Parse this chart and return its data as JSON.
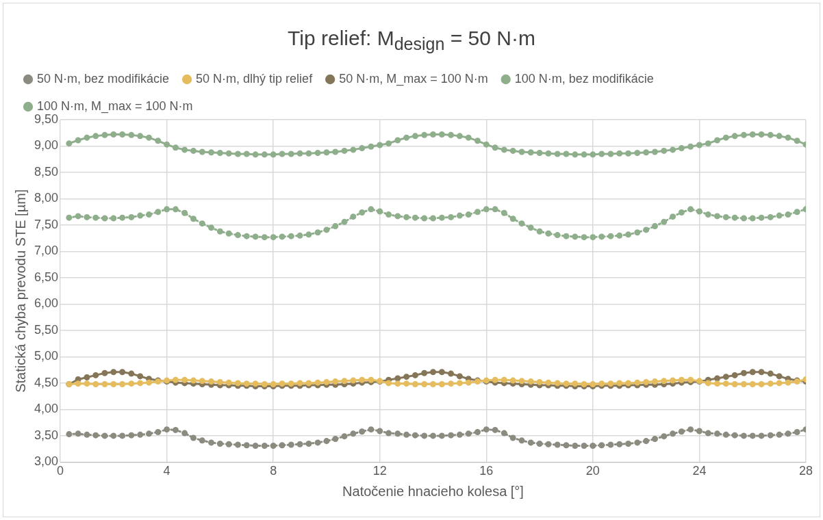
{
  "chart_data": {
    "type": "line",
    "title": "Tip relief: M$_{design}$ = 50 N·m",
    "xlabel": "Natočenie hnacieho kolesa [°]",
    "ylabel": "Statická chyba prevodu STE [µm]",
    "x": [
      0.33,
      0.67,
      1,
      1.33,
      1.67,
      2,
      2.33,
      2.67,
      3,
      3.33,
      3.67,
      4,
      4.33,
      4.67,
      5,
      5.33,
      5.67,
      6,
      6.33,
      6.67,
      7,
      7.33,
      7.67,
      8,
      8.33,
      8.67,
      9,
      9.33,
      9.67,
      10,
      10.33,
      10.67,
      11,
      11.33,
      11.67,
      12,
      12.33,
      12.67,
      13,
      13.33,
      13.67,
      14,
      14.33,
      14.67,
      15,
      15.33,
      15.67,
      16,
      16.33,
      16.67,
      17,
      17.33,
      17.67,
      18,
      18.33,
      18.67,
      19,
      19.33,
      19.67,
      20,
      20.33,
      20.67,
      21,
      21.33,
      21.67,
      22,
      22.33,
      22.67,
      23,
      23.33,
      23.67,
      24,
      24.33,
      24.67,
      25,
      25.33,
      25.67,
      26,
      26.33,
      26.67,
      27,
      27.33,
      27.67,
      28
    ],
    "xlim": [
      0,
      28
    ],
    "xticks": [
      0,
      4,
      8,
      12,
      16,
      20,
      24,
      28
    ],
    "ylim": [
      3,
      9.5
    ],
    "yticks": [
      {
        "value": 3,
        "label": "3,00"
      },
      {
        "value": 3.5,
        "label": "3,50"
      },
      {
        "value": 4,
        "label": "4,00"
      },
      {
        "value": 4.5,
        "label": "4,50"
      },
      {
        "value": 5,
        "label": "5,00"
      },
      {
        "value": 5.5,
        "label": "5,50"
      },
      {
        "value": 6,
        "label": "6,00"
      },
      {
        "value": 6.5,
        "label": "6,50"
      },
      {
        "value": 7,
        "label": "7,00"
      },
      {
        "value": 7.5,
        "label": "7,50"
      },
      {
        "value": 8,
        "label": "8,00"
      },
      {
        "value": 8.5,
        "label": "8,50"
      },
      {
        "value": 9,
        "label": "9,00"
      },
      {
        "value": 9.5,
        "label": "9,50"
      }
    ],
    "grid": true,
    "legend": "top",
    "marker": "circle",
    "series": [
      {
        "name": "50 N·m, bez modifikácie",
        "color": "#8c8b80",
        "line_style": "dotted",
        "values": [
          3.53,
          3.54,
          3.52,
          3.51,
          3.5,
          3.5,
          3.5,
          3.51,
          3.52,
          3.54,
          3.57,
          3.62,
          3.61,
          3.55,
          3.46,
          3.41,
          3.37,
          3.35,
          3.34,
          3.33,
          3.32,
          3.31,
          3.31,
          3.31,
          3.32,
          3.33,
          3.34,
          3.35,
          3.37,
          3.4,
          3.44,
          3.49,
          3.54,
          3.58,
          3.62,
          3.59,
          3.55,
          3.54,
          3.52,
          3.51,
          3.5,
          3.5,
          3.5,
          3.51,
          3.52,
          3.54,
          3.57,
          3.62,
          3.61,
          3.55,
          3.46,
          3.41,
          3.37,
          3.35,
          3.34,
          3.33,
          3.32,
          3.31,
          3.31,
          3.31,
          3.32,
          3.33,
          3.34,
          3.35,
          3.37,
          3.4,
          3.44,
          3.49,
          3.54,
          3.58,
          3.62,
          3.59,
          3.55,
          3.54,
          3.52,
          3.51,
          3.5,
          3.5,
          3.5,
          3.51,
          3.52,
          3.54,
          3.57,
          3.62
        ]
      },
      {
        "name": "50 N·m, dlhý tip relief",
        "color": "#e6bd5e",
        "line_style": "solid",
        "values": [
          4.48,
          4.49,
          4.49,
          4.48,
          4.48,
          4.48,
          4.48,
          4.49,
          4.5,
          4.51,
          4.53,
          4.55,
          4.56,
          4.56,
          4.55,
          4.54,
          4.53,
          4.52,
          4.51,
          4.5,
          4.49,
          4.49,
          4.48,
          4.48,
          4.49,
          4.49,
          4.5,
          4.5,
          4.51,
          4.52,
          4.53,
          4.54,
          4.55,
          4.56,
          4.56,
          4.54,
          4.5,
          4.49,
          4.49,
          4.48,
          4.48,
          4.48,
          4.48,
          4.49,
          4.5,
          4.51,
          4.53,
          4.55,
          4.56,
          4.56,
          4.55,
          4.54,
          4.53,
          4.52,
          4.51,
          4.5,
          4.49,
          4.49,
          4.48,
          4.48,
          4.49,
          4.49,
          4.5,
          4.5,
          4.51,
          4.52,
          4.53,
          4.54,
          4.55,
          4.56,
          4.56,
          4.54,
          4.5,
          4.49,
          4.49,
          4.48,
          4.48,
          4.48,
          4.48,
          4.49,
          4.5,
          4.51,
          4.53,
          4.57
        ]
      },
      {
        "name": "50 N·m, M_max = 100 N·m",
        "color": "#857659",
        "line_style": "solid",
        "values": [
          4.48,
          4.57,
          4.61,
          4.65,
          4.69,
          4.71,
          4.71,
          4.68,
          4.63,
          4.58,
          4.55,
          4.53,
          4.51,
          4.5,
          4.49,
          4.48,
          4.47,
          4.46,
          4.46,
          4.45,
          4.45,
          4.44,
          4.44,
          4.44,
          4.45,
          4.45,
          4.45,
          4.46,
          4.46,
          4.47,
          4.47,
          4.48,
          4.49,
          4.51,
          4.52,
          4.53,
          4.56,
          4.59,
          4.62,
          4.65,
          4.69,
          4.71,
          4.71,
          4.68,
          4.63,
          4.58,
          4.55,
          4.53,
          4.51,
          4.5,
          4.49,
          4.48,
          4.47,
          4.46,
          4.46,
          4.45,
          4.45,
          4.44,
          4.44,
          4.44,
          4.45,
          4.45,
          4.45,
          4.46,
          4.46,
          4.47,
          4.47,
          4.48,
          4.49,
          4.51,
          4.52,
          4.53,
          4.56,
          4.59,
          4.62,
          4.65,
          4.69,
          4.71,
          4.71,
          4.68,
          4.63,
          4.58,
          4.55,
          4.53
        ]
      },
      {
        "name": "100 N·m, bez modifikácie",
        "color": "#8fae8c",
        "line_style": "dotted",
        "values": [
          7.64,
          7.67,
          7.65,
          7.64,
          7.63,
          7.63,
          7.64,
          7.65,
          7.68,
          7.7,
          7.75,
          7.8,
          7.8,
          7.73,
          7.62,
          7.53,
          7.45,
          7.38,
          7.34,
          7.31,
          7.29,
          7.28,
          7.27,
          7.27,
          7.28,
          7.29,
          7.3,
          7.32,
          7.36,
          7.41,
          7.48,
          7.56,
          7.66,
          7.74,
          7.8,
          7.76,
          7.7,
          7.67,
          7.65,
          7.64,
          7.63,
          7.63,
          7.64,
          7.65,
          7.68,
          7.7,
          7.75,
          7.8,
          7.8,
          7.73,
          7.62,
          7.53,
          7.45,
          7.38,
          7.34,
          7.31,
          7.29,
          7.28,
          7.27,
          7.27,
          7.28,
          7.29,
          7.3,
          7.32,
          7.36,
          7.41,
          7.48,
          7.56,
          7.66,
          7.74,
          7.8,
          7.76,
          7.7,
          7.67,
          7.65,
          7.64,
          7.63,
          7.63,
          7.64,
          7.65,
          7.68,
          7.7,
          7.75,
          7.8
        ]
      },
      {
        "name": "100 N·m, M_max = 100 N·m",
        "color": "#8fae8c",
        "line_style": "solid",
        "values": [
          9.05,
          9.11,
          9.16,
          9.19,
          9.21,
          9.22,
          9.22,
          9.21,
          9.19,
          9.16,
          9.1,
          9.03,
          8.97,
          8.93,
          8.91,
          8.89,
          8.88,
          8.87,
          8.86,
          8.85,
          8.85,
          8.84,
          8.84,
          8.84,
          8.85,
          8.85,
          8.86,
          8.86,
          8.87,
          8.88,
          8.89,
          8.91,
          8.93,
          8.96,
          8.99,
          9.02,
          9.05,
          9.11,
          9.16,
          9.19,
          9.21,
          9.22,
          9.22,
          9.21,
          9.19,
          9.16,
          9.1,
          9.03,
          8.97,
          8.93,
          8.91,
          8.89,
          8.88,
          8.87,
          8.86,
          8.85,
          8.85,
          8.84,
          8.84,
          8.84,
          8.85,
          8.85,
          8.86,
          8.86,
          8.87,
          8.88,
          8.89,
          8.91,
          8.93,
          8.96,
          8.99,
          9.02,
          9.05,
          9.11,
          9.16,
          9.19,
          9.21,
          9.22,
          9.22,
          9.21,
          9.19,
          9.16,
          9.1,
          9.03
        ]
      }
    ]
  }
}
